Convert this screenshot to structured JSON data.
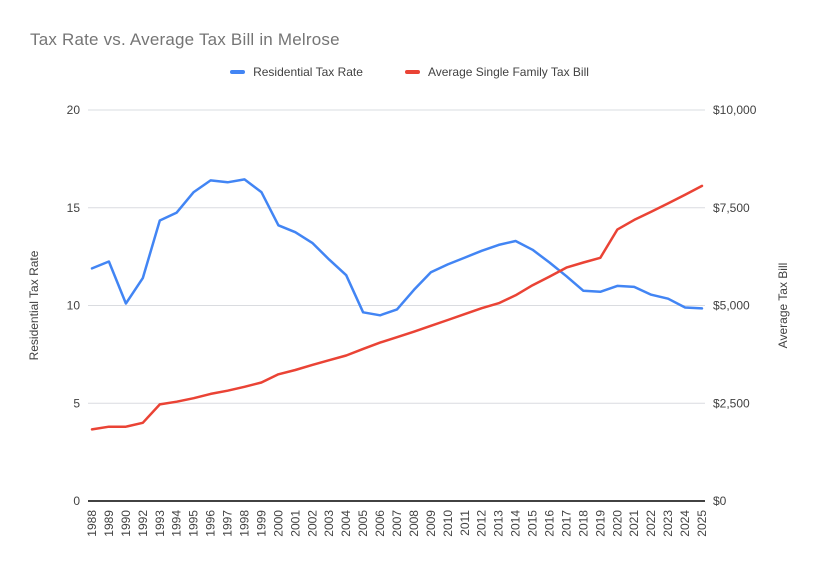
{
  "title": "Tax Rate vs. Average Tax Bill in Melrose",
  "legend": [
    {
      "label": "Residential Tax Rate",
      "color": "#4285F4"
    },
    {
      "label": "Average Single Family Tax Bill",
      "color": "#EA4335"
    }
  ],
  "chart_data": {
    "type": "line",
    "title": "Tax Rate vs. Average Tax Bill in Melrose",
    "categories": [
      "1988",
      "1989",
      "1990",
      "1992",
      "1993",
      "1994",
      "1995",
      "1996",
      "1997",
      "1998",
      "1999",
      "2000",
      "2001",
      "2002",
      "2003",
      "2004",
      "2005",
      "2006",
      "2007",
      "2008",
      "2009",
      "2010",
      "2011",
      "2012",
      "2013",
      "2014",
      "2015",
      "2016",
      "2017",
      "2018",
      "2019",
      "2020",
      "2021",
      "2022",
      "2023",
      "2024",
      "2025"
    ],
    "series": [
      {
        "name": "Residential Tax Rate",
        "axis": "left",
        "color": "#4285F4",
        "values": [
          11.9,
          12.25,
          10.1,
          11.4,
          14.35,
          14.75,
          15.8,
          16.4,
          16.3,
          16.45,
          15.8,
          14.1,
          13.75,
          13.2,
          12.35,
          11.55,
          9.65,
          9.5,
          9.8,
          10.8,
          11.7,
          12.1,
          12.45,
          12.8,
          13.1,
          13.3,
          12.85,
          12.2,
          11.5,
          10.75,
          10.7,
          11.0,
          10.95,
          10.55,
          10.35,
          9.9,
          9.85
        ]
      },
      {
        "name": "Average Single Family Tax Bill",
        "axis": "right",
        "color": "#EA4335",
        "values": [
          1830,
          1900,
          1900,
          2000,
          2470,
          2540,
          2630,
          2740,
          2820,
          2920,
          3030,
          3240,
          3350,
          3480,
          3600,
          3720,
          3890,
          4050,
          4190,
          4330,
          4480,
          4630,
          4780,
          4930,
          5060,
          5260,
          5520,
          5740,
          5970,
          6100,
          6220,
          6940,
          7190,
          7400,
          7610,
          7830,
          8060
        ]
      }
    ],
    "left_axis": {
      "title": "Residential Tax Rate",
      "tick_values": [
        0,
        5,
        10,
        15,
        20
      ],
      "tick_labels": [
        "0",
        "5",
        "10",
        "15",
        "20"
      ],
      "range": [
        0,
        20
      ]
    },
    "right_axis": {
      "title": "Average Tax Bill",
      "tick_values": [
        0,
        2500,
        5000,
        7500,
        10000
      ],
      "tick_labels": [
        "$0",
        "$2,500",
        "$5,000",
        "$7,500",
        "$10,000"
      ],
      "range": [
        0,
        10000
      ]
    },
    "xlabel": "",
    "grid": true,
    "legend_position": "top",
    "x_tick_rotation": -90
  },
  "colors": {
    "title_text": "#757575",
    "axis_text": "#424242",
    "gridline": "#DADCE0",
    "baseline": "#424242",
    "background": "#FFFFFF"
  }
}
